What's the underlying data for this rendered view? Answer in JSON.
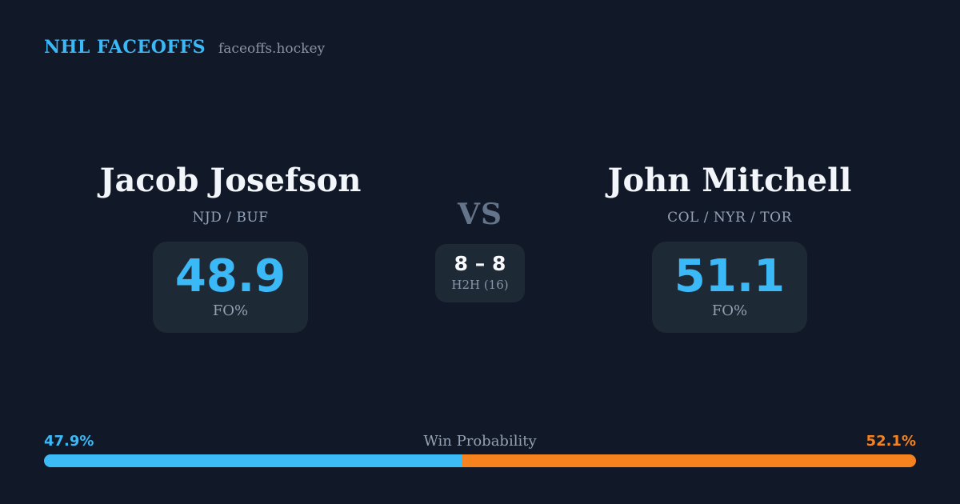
{
  "header": {
    "brand": "NHL FACEOFFS",
    "site": "faceoffs.hockey"
  },
  "players": [
    {
      "name": "Jacob Josefson",
      "teams": "NJD / BUF",
      "fo_pct": "48.9",
      "fo_label": "FO%"
    },
    {
      "name": "John Mitchell",
      "teams": "COL / NYR / TOR",
      "fo_pct": "51.1",
      "fo_label": "FO%"
    }
  ],
  "matchup": {
    "vs_label": "VS",
    "h2h_score": "8 – 8",
    "h2h_label": "H2H (16)"
  },
  "win_probability": {
    "label": "Win Probability",
    "left_pct_text": "47.9%",
    "right_pct_text": "52.1%",
    "left_value": 47.9,
    "right_value": 52.1
  },
  "colors": {
    "background": "#111827",
    "card": "#1e2936",
    "accent_blue": "#3bb8f6",
    "accent_orange": "#f5821f",
    "muted_text": "#94a3b8",
    "name_text": "#f2f5f9"
  }
}
